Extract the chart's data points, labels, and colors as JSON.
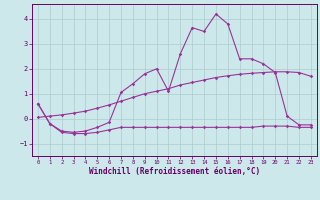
{
  "xlabel": "Windchill (Refroidissement éolien,°C)",
  "bg_color": "#cce8ea",
  "grid_color": "#aacccc",
  "line_color": "#993399",
  "spine_color": "#660066",
  "xlim": [
    -0.5,
    23.5
  ],
  "ylim": [
    -1.5,
    4.6
  ],
  "xticks": [
    0,
    1,
    2,
    3,
    4,
    5,
    6,
    7,
    8,
    9,
    10,
    11,
    12,
    13,
    14,
    15,
    16,
    17,
    18,
    19,
    20,
    21,
    22,
    23
  ],
  "yticks": [
    -1,
    0,
    1,
    2,
    3,
    4
  ],
  "line1_x": [
    0,
    1,
    2,
    3,
    4,
    5,
    6,
    7,
    8,
    9,
    10,
    11,
    12,
    13,
    14,
    15,
    16,
    17,
    18,
    19,
    20,
    21,
    22,
    23
  ],
  "line1_y": [
    0.6,
    -0.2,
    -0.5,
    -0.55,
    -0.5,
    -0.35,
    -0.15,
    1.05,
    1.4,
    1.8,
    2.0,
    1.1,
    2.6,
    3.65,
    3.5,
    4.2,
    3.8,
    2.4,
    2.4,
    2.2,
    1.85,
    0.1,
    -0.25,
    -0.25
  ],
  "line2_x": [
    0,
    1,
    2,
    3,
    4,
    5,
    6,
    7,
    8,
    9,
    10,
    11,
    12,
    13,
    14,
    15,
    16,
    17,
    18,
    19,
    20,
    21,
    22,
    23
  ],
  "line2_y": [
    0.6,
    -0.2,
    -0.55,
    -0.6,
    -0.6,
    -0.55,
    -0.45,
    -0.35,
    -0.35,
    -0.35,
    -0.35,
    -0.35,
    -0.35,
    -0.35,
    -0.35,
    -0.35,
    -0.35,
    -0.35,
    -0.35,
    -0.3,
    -0.3,
    -0.3,
    -0.35,
    -0.35
  ],
  "line3_x": [
    0,
    1,
    2,
    3,
    4,
    5,
    6,
    7,
    8,
    9,
    10,
    11,
    12,
    13,
    14,
    15,
    16,
    17,
    18,
    19,
    20,
    21,
    22,
    23
  ],
  "line3_y": [
    0.05,
    0.1,
    0.15,
    0.22,
    0.3,
    0.42,
    0.55,
    0.7,
    0.85,
    1.0,
    1.1,
    1.2,
    1.35,
    1.45,
    1.55,
    1.65,
    1.72,
    1.78,
    1.82,
    1.85,
    1.88,
    1.88,
    1.85,
    1.7
  ]
}
